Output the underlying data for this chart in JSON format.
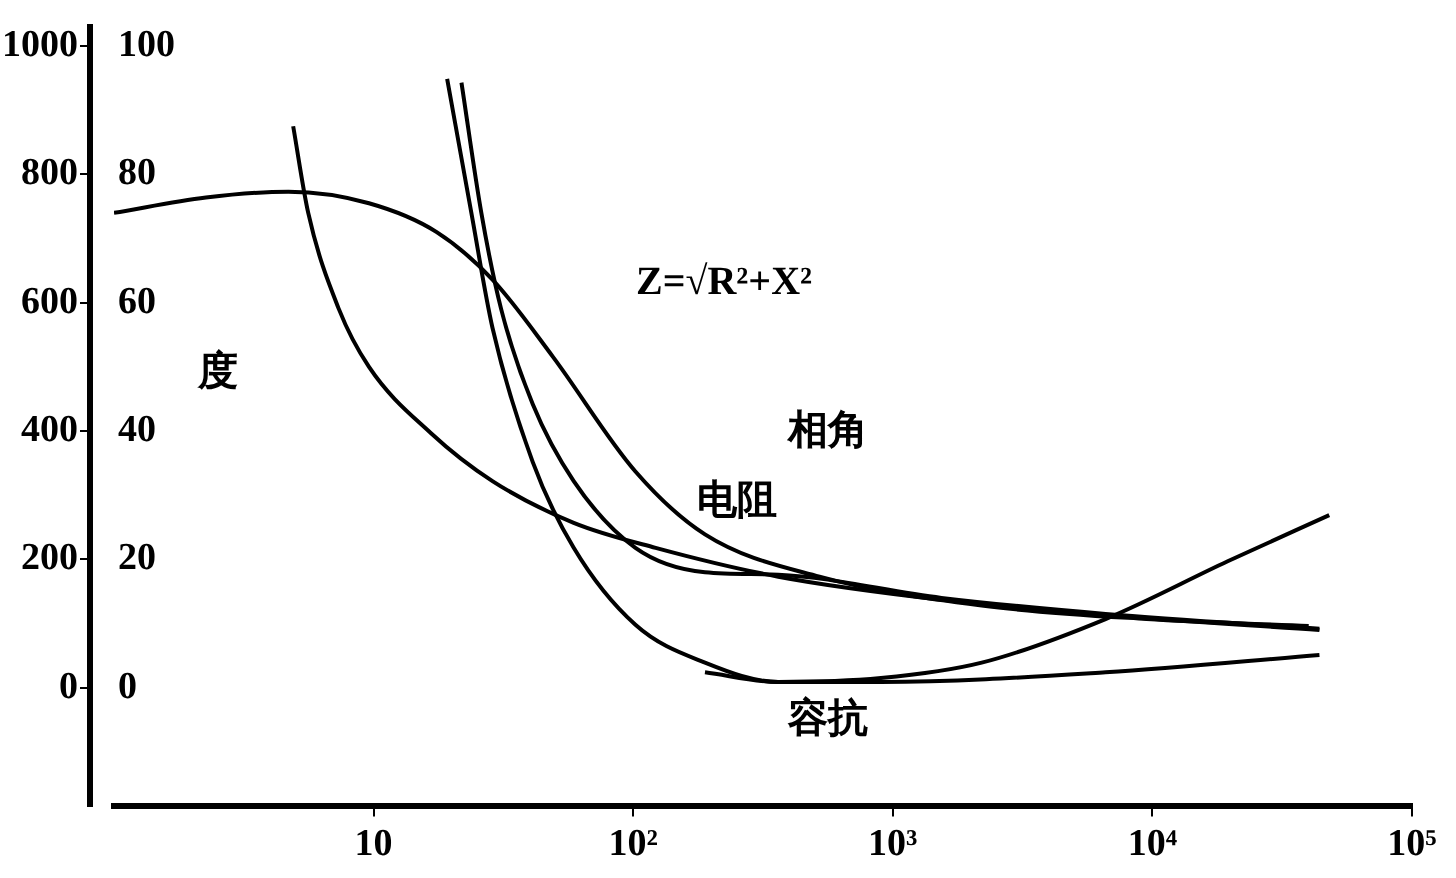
{
  "chart_data": {
    "type": "line",
    "y2label": "度",
    "log": "x",
    "grid": false,
    "legend": false,
    "marker": "none",
    "line_style": "solid",
    "xlim": [
      1,
      100000
    ],
    "xticks": [
      {
        "value": 10,
        "label": "10"
      },
      {
        "value": 100,
        "label": "10²"
      },
      {
        "value": 1000,
        "label": "10³"
      },
      {
        "value": 10000,
        "label": "10⁴"
      },
      {
        "value": 100000,
        "label": "10⁵"
      }
    ],
    "ylim": [
      -185,
      1030
    ],
    "yticks": [
      0,
      200,
      400,
      600,
      800,
      1000
    ],
    "y2lim": [
      -18.5,
      103
    ],
    "y2ticks": [
      0,
      20,
      40,
      60,
      80,
      100
    ],
    "series": [
      {
        "color": "#000000",
        "axis": "y2",
        "x": [
          1,
          2.26,
          4.7,
          9.6,
          17.5,
          28.7,
          49,
          102,
          189,
          522,
          2200,
          9500,
          40000
        ],
        "values": [
          74,
          76.4,
          77.3,
          75.5,
          71,
          63.6,
          51.6,
          33.7,
          23.9,
          17.3,
          12.8,
          10.7,
          9.6
        ]
      },
      {
        "color": "#000000",
        "x": [
          4.9,
          5.6,
          7.35,
          9.6,
          16.6,
          28.7,
          59,
          122,
          362,
          1540,
          6600,
          44000
        ],
        "values": [
          875,
          740,
          590,
          500,
          397,
          322,
          257,
          218,
          173,
          137,
          113,
          90
        ]
      },
      {
        "color": "#000000",
        "x": [
          21.8,
          26,
          31,
          41,
          59,
          102,
          189,
          362,
          1540,
          6600,
          44000
        ],
        "values": [
          943,
          740,
          590,
          442,
          322,
          218,
          180,
          176,
          140,
          115,
          92
        ]
      },
      {
        "color": "#000000",
        "x": [
          19.2,
          23.8,
          28.7,
          41,
          59,
          102,
          189,
          362,
          900,
          6600,
          44000
        ],
        "values": [
          949,
          740,
          561,
          352,
          218,
          98,
          39,
          9,
          9,
          24,
          51
        ]
      },
      {
        "color": "#000000",
        "x": [
          189,
          362,
          900,
          2200,
          6600,
          19500,
          48000
        ],
        "values": [
          24,
          9,
          15,
          39,
          107,
          197,
          269
        ]
      }
    ],
    "annotations": [
      "Z=√R²+X²",
      "相角",
      "电阻",
      "容抗"
    ]
  }
}
